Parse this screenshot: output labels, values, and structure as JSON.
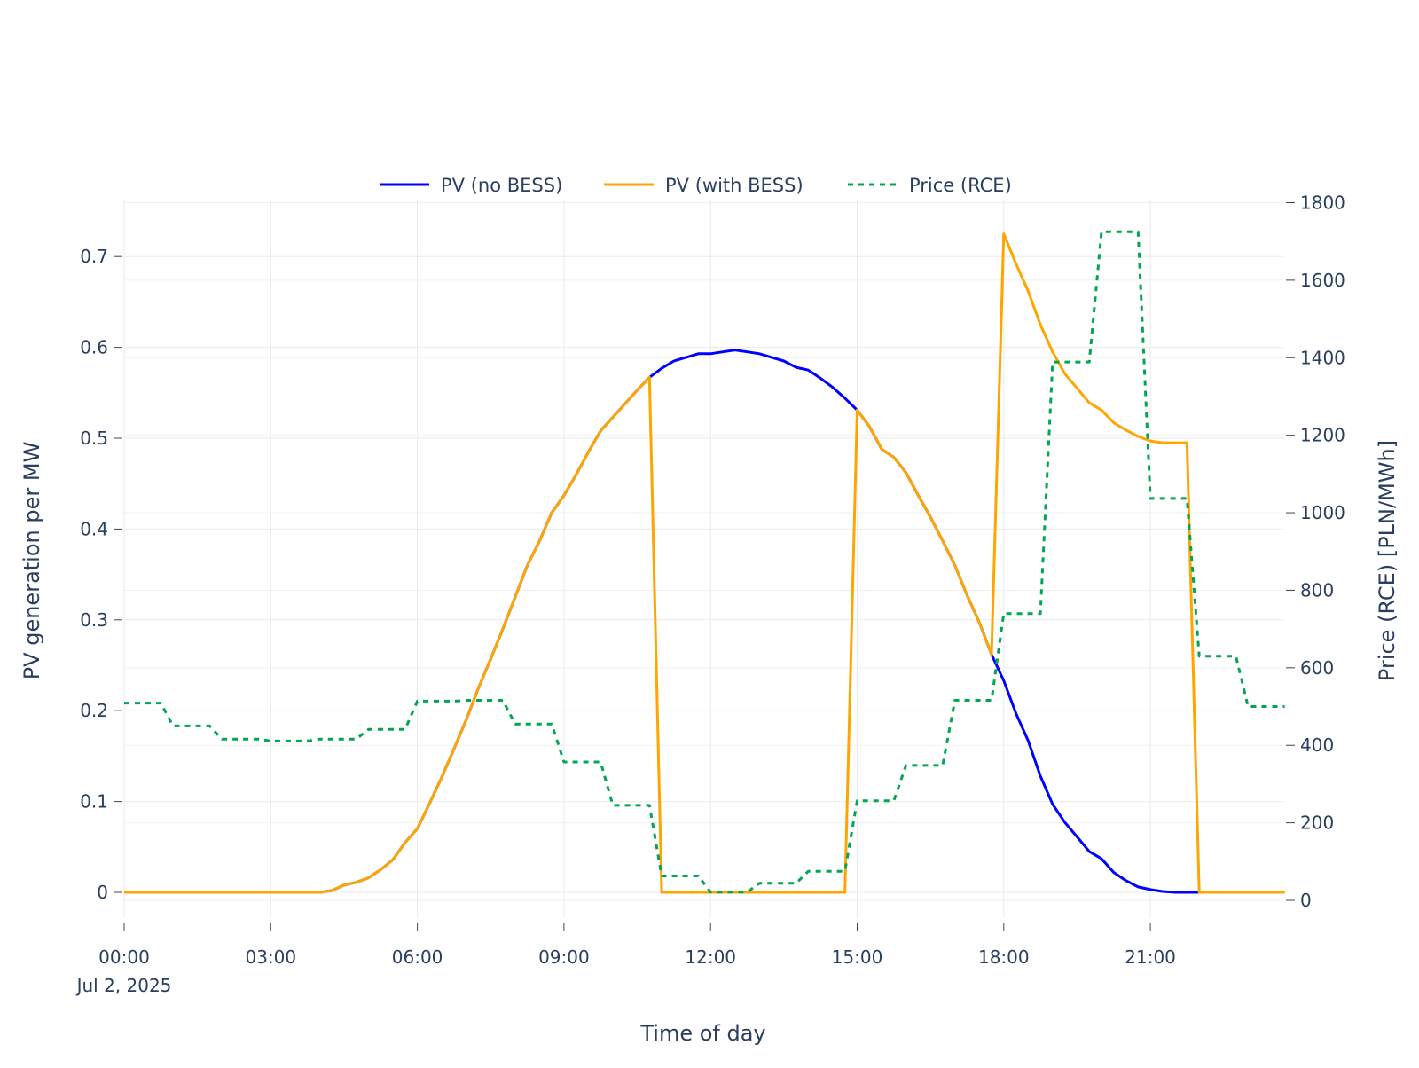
{
  "chart_data": {
    "type": "line",
    "xlabel": "Time of day",
    "ylabel": "PV generation per MW",
    "y2label": "Price (RCE) [PLN/MWh]",
    "x_start": "2025-07-02 00:00",
    "x_step_minutes": 15,
    "x_ticks": [
      "00:00",
      "03:00",
      "06:00",
      "09:00",
      "12:00",
      "15:00",
      "18:00",
      "21:00"
    ],
    "x_tick_hours": [
      0,
      3,
      6,
      9,
      12,
      15,
      18,
      21
    ],
    "x_date_label": "Jul 2, 2025",
    "ylim": [
      -0.04,
      0.77
    ],
    "y_ticks": [
      "0",
      "0.1",
      "0.2",
      "0.3",
      "0.4",
      "0.5",
      "0.6",
      "0.7"
    ],
    "y_tick_values": [
      0,
      0.1,
      0.2,
      0.3,
      0.4,
      0.5,
      0.6,
      0.7
    ],
    "y2lim": [
      0,
      1800
    ],
    "y2_ticks": [
      "0",
      "200",
      "400",
      "600",
      "800",
      "1000",
      "1200",
      "1400",
      "1600",
      "1800"
    ],
    "y2_tick_values": [
      0,
      200,
      400,
      600,
      800,
      1000,
      1200,
      1400,
      1600,
      1800
    ],
    "grid": true,
    "legend_placement": "top-center",
    "series": [
      {
        "name": "PV (no BESS)",
        "color": "#0000ff",
        "axis": "y",
        "dash": "solid",
        "values": [
          0,
          0,
          0,
          0,
          0,
          0,
          0,
          0,
          0,
          0,
          0,
          0,
          0,
          0,
          0,
          0,
          0,
          0.002,
          0.008,
          0.011,
          0.016,
          0.025,
          0.036,
          0.055,
          0.07,
          0.098,
          0.127,
          0.158,
          0.19,
          0.225,
          0.257,
          0.29,
          0.325,
          0.36,
          0.387,
          0.418,
          0.437,
          0.46,
          0.485,
          0.508,
          0.523,
          0.538,
          0.553,
          0.567,
          0.577,
          0.585,
          0.589,
          0.593,
          0.593,
          0.595,
          0.597,
          0.595,
          0.593,
          0.589,
          0.585,
          0.578,
          0.575,
          0.566,
          0.556,
          0.544,
          0.531,
          0.513,
          0.488,
          0.479,
          0.462,
          0.437,
          0.413,
          0.387,
          0.36,
          0.327,
          0.297,
          0.262,
          0.233,
          0.197,
          0.167,
          0.128,
          0.097,
          0.077,
          0.061,
          0.045,
          0.037,
          0.022,
          0.013,
          0.006,
          0.003,
          0.001,
          0,
          0,
          0,
          0,
          0,
          0,
          0,
          0,
          0,
          0
        ]
      },
      {
        "name": "PV (with BESS)",
        "color": "#ffa500",
        "axis": "y",
        "dash": "solid",
        "values": [
          0,
          0,
          0,
          0,
          0,
          0,
          0,
          0,
          0,
          0,
          0,
          0,
          0,
          0,
          0,
          0,
          0,
          0.002,
          0.008,
          0.011,
          0.016,
          0.025,
          0.036,
          0.055,
          0.07,
          0.098,
          0.127,
          0.158,
          0.19,
          0.225,
          0.257,
          0.29,
          0.325,
          0.36,
          0.387,
          0.418,
          0.437,
          0.46,
          0.485,
          0.508,
          0.523,
          0.538,
          0.553,
          0.567,
          0,
          0,
          0,
          0,
          0,
          0,
          0,
          0,
          0,
          0,
          0,
          0,
          0,
          0,
          0,
          0,
          0.531,
          0.513,
          0.488,
          0.479,
          0.462,
          0.437,
          0.413,
          0.387,
          0.36,
          0.327,
          0.297,
          0.262,
          0.725,
          0.692,
          0.662,
          0.625,
          0.595,
          0.571,
          0.555,
          0.539,
          0.531,
          0.517,
          0.509,
          0.502,
          0.497,
          0.495,
          0.495,
          0.495,
          0,
          0,
          0,
          0,
          0,
          0,
          0,
          0
        ]
      },
      {
        "name": "Price (RCE)",
        "color": "#00a651",
        "axis": "y2",
        "dash": "dot",
        "hourly_values": [
          509,
          450,
          416,
          411,
          416,
          441,
          514,
          516,
          455,
          357,
          245,
          63,
          21,
          44,
          75,
          257,
          348,
          516,
          740,
          1389,
          1725,
          1037,
          630,
          500
        ]
      }
    ]
  }
}
